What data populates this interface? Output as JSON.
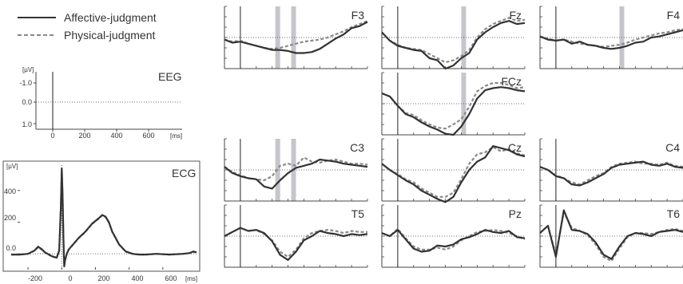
{
  "chart_data": {
    "type": "line",
    "legend": {
      "position": "top-left",
      "entries": [
        {
          "name": "Affective-judgment",
          "style": "solid",
          "color": "#333333"
        },
        {
          "name": "Physical-judgment",
          "style": "dashed",
          "color": "#888888"
        }
      ]
    },
    "eeg_scale": {
      "title": "EEG",
      "ylabel": "[µV]",
      "yticks": [
        "-1.0",
        "0.0",
        "1.0"
      ],
      "xticks": [
        "0",
        "200",
        "400",
        "600"
      ],
      "xunit": "[ms]",
      "xlim": [
        -100,
        800
      ],
      "ylim": [
        -1.5,
        1.5
      ],
      "y_inverted": true
    },
    "ecg": {
      "title": "ECG",
      "ylabel": "[µV]",
      "yticks": [
        "0.0",
        "200",
        "400"
      ],
      "xticks": [
        "-200",
        "0",
        "200",
        "400",
        "600"
      ],
      "xunit": "[ms]",
      "xlim": [
        -300,
        800
      ],
      "ylim": [
        -100,
        560
      ],
      "x": [
        -300,
        -250,
        -200,
        -160,
        -140,
        -120,
        -100,
        -60,
        -30,
        -15,
        -5,
        0,
        5,
        10,
        15,
        20,
        30,
        40,
        60,
        100,
        140,
        180,
        220,
        240,
        260,
        280,
        300,
        340,
        380,
        420,
        460,
        500,
        560,
        640,
        720,
        760,
        780,
        800
      ],
      "series": [
        {
          "name": "Affective-judgment",
          "values": [
            -5,
            -5,
            0,
            22,
            45,
            30,
            10,
            -15,
            -25,
            20,
            300,
            540,
            380,
            100,
            -80,
            -40,
            0,
            25,
            50,
            100,
            140,
            190,
            225,
            245,
            235,
            200,
            140,
            60,
            15,
            0,
            -5,
            -5,
            0,
            -5,
            0,
            5,
            15,
            10
          ]
        },
        {
          "name": "Physical-judgment",
          "values": [
            -5,
            -5,
            0,
            20,
            42,
            28,
            8,
            -15,
            -25,
            18,
            290,
            525,
            370,
            95,
            -75,
            -38,
            0,
            25,
            48,
            98,
            138,
            188,
            222,
            243,
            232,
            198,
            138,
            58,
            14,
            0,
            -5,
            -5,
            0,
            -5,
            0,
            5,
            12,
            8
          ]
        }
      ]
    },
    "erp": {
      "xlim": [
        -100,
        800
      ],
      "ylim": [
        -3,
        3
      ],
      "y_inverted": true,
      "x": [
        -100,
        -50,
        0,
        50,
        100,
        150,
        200,
        250,
        300,
        350,
        400,
        450,
        500,
        550,
        600,
        650,
        700,
        750,
        800
      ],
      "channels": [
        {
          "label": "F3",
          "shaded_ms": [
            [
              220,
              240
            ],
            [
              320,
              340
            ]
          ],
          "series": [
            {
              "name": "Affective-judgment",
              "values": [
                0.2,
                0.5,
                0.4,
                0.6,
                0.8,
                1.0,
                1.2,
                1.2,
                1.3,
                1.5,
                1.5,
                1.4,
                1.1,
                0.6,
                0.1,
                -0.3,
                -0.9,
                -1.1,
                -1.5
              ]
            },
            {
              "name": "Physical-judgment",
              "values": [
                0.2,
                0.4,
                0.3,
                0.6,
                0.8,
                1.0,
                1.1,
                1.0,
                0.8,
                0.6,
                0.4,
                0.3,
                0.2,
                0.0,
                -0.3,
                -0.6,
                -1.0,
                -1.3,
                -1.6
              ]
            }
          ]
        },
        {
          "label": "Fz",
          "shaded_ms": [
            [
              400,
              420
            ]
          ],
          "series": [
            {
              "name": "Affective-judgment",
              "values": [
                -0.5,
                0.3,
                0.8,
                1.0,
                1.2,
                1.3,
                2.0,
                2.2,
                3.0,
                2.7,
                2.0,
                1.5,
                0.2,
                -0.5,
                -1.0,
                -1.4,
                -1.6,
                -1.3,
                -1.4
              ]
            },
            {
              "name": "Physical-judgment",
              "values": [
                -0.5,
                0.3,
                0.7,
                1.0,
                1.1,
                1.2,
                1.6,
                2.0,
                2.4,
                2.2,
                1.8,
                1.2,
                0.0,
                -0.8,
                -1.3,
                -1.6,
                -1.9,
                -1.6,
                -1.7
              ]
            }
          ]
        },
        {
          "label": "F4",
          "shaded_ms": [
            [
              400,
              420
            ]
          ],
          "series": [
            {
              "name": "Affective-judgment",
              "values": [
                -0.1,
                0.2,
                0.3,
                0.2,
                0.6,
                0.4,
                0.7,
                0.8,
                1.0,
                1.1,
                1.0,
                0.8,
                0.5,
                0.4,
                0.0,
                -0.1,
                -0.3,
                -0.5,
                -0.7
              ]
            },
            {
              "name": "Physical-judgment",
              "values": [
                -0.1,
                0.1,
                0.3,
                0.2,
                0.4,
                0.6,
                0.7,
                0.8,
                0.9,
                0.8,
                0.7,
                0.5,
                0.2,
                0.0,
                -0.2,
                -0.4,
                -0.5,
                -0.7,
                -0.8
              ]
            }
          ]
        },
        {
          "label": "FCz",
          "shaded_ms": [
            [
              400,
              420
            ]
          ],
          "series": [
            {
              "name": "Affective-judgment",
              "values": [
                -1.0,
                -0.7,
                0.2,
                1.0,
                1.3,
                1.8,
                2.2,
                2.5,
                2.9,
                3.0,
                2.2,
                1.0,
                -0.5,
                -1.3,
                -1.5,
                -1.6,
                -1.5,
                -1.3,
                -1.2
              ]
            },
            {
              "name": "Physical-judgment",
              "values": [
                -1.0,
                -0.7,
                0.2,
                0.9,
                1.1,
                1.6,
                2.0,
                2.3,
                2.4,
                2.0,
                1.5,
                0.3,
                -1.2,
                -1.7,
                -2.0,
                -2.0,
                -1.8,
                -1.5,
                -1.6
              ]
            }
          ]
        },
        {
          "label": "C3",
          "shaded_ms": [
            [
              220,
              240
            ],
            [
              320,
              340
            ]
          ],
          "series": [
            {
              "name": "Affective-judgment",
              "values": [
                -0.3,
                0.3,
                0.6,
                0.8,
                0.9,
                1.6,
                1.8,
                1.0,
                0.3,
                -0.2,
                -0.4,
                -0.6,
                -1.0,
                -0.9,
                -0.8,
                -0.6,
                -0.5,
                -0.4,
                -0.3
              ]
            },
            {
              "name": "Physical-judgment",
              "values": [
                -0.3,
                0.2,
                0.5,
                0.8,
                0.9,
                1.0,
                0.6,
                -0.4,
                -0.6,
                -0.4,
                -1.2,
                -0.8,
                -0.7,
                -0.9,
                -1.0,
                -0.8,
                -0.6,
                -0.6,
                -0.5
              ]
            }
          ]
        },
        {
          "label": "Cz",
          "shaded_ms": [],
          "series": [
            {
              "name": "Affective-judgment",
              "values": [
                -0.6,
                0.0,
                0.5,
                1.0,
                1.4,
                2.0,
                2.4,
                2.8,
                3.1,
                2.6,
                1.2,
                0.0,
                -0.8,
                -1.2,
                -2.3,
                -2.1,
                -1.9,
                -1.5,
                -1.3
              ]
            },
            {
              "name": "Physical-judgment",
              "values": [
                -0.6,
                0.0,
                0.4,
                0.9,
                1.2,
                1.8,
                2.2,
                2.6,
                2.6,
                2.2,
                0.9,
                -0.6,
                -1.5,
                -1.7,
                -2.2,
                -1.8,
                -2.0,
                -1.6,
                -1.4
              ]
            }
          ]
        },
        {
          "label": "C4",
          "shaded_ms": [],
          "series": [
            {
              "name": "Affective-judgment",
              "values": [
                -0.3,
                0.0,
                0.6,
                0.8,
                1.4,
                1.5,
                1.2,
                0.8,
                0.4,
                -0.2,
                -0.5,
                -0.6,
                -0.7,
                -0.8,
                -0.5,
                -0.4,
                -0.6,
                -0.3,
                -0.2
              ]
            },
            {
              "name": "Physical-judgment",
              "values": [
                -0.3,
                0.0,
                0.5,
                0.8,
                1.2,
                1.4,
                1.0,
                0.6,
                0.3,
                -0.3,
                -0.6,
                -0.7,
                -0.8,
                -0.6,
                -0.6,
                -0.5,
                -0.7,
                -0.4,
                -0.3
              ]
            }
          ]
        },
        {
          "label": "T5",
          "shaded_ms": [],
          "series": [
            {
              "name": "Affective-judgment",
              "values": [
                0.0,
                -0.4,
                -0.8,
                -0.5,
                -0.6,
                -0.3,
                0.5,
                1.8,
                2.3,
                1.5,
                0.4,
                0.0,
                -0.5,
                -0.3,
                -0.2,
                0.0,
                -0.2,
                -0.1,
                -0.2
              ]
            },
            {
              "name": "Physical-judgment",
              "values": [
                0.0,
                -0.4,
                -0.8,
                -0.5,
                -0.6,
                -0.2,
                0.4,
                1.5,
                2.0,
                1.3,
                0.2,
                -0.3,
                -0.5,
                -0.6,
                -0.5,
                -0.3,
                -0.5,
                -0.4,
                -0.4
              ]
            }
          ]
        },
        {
          "label": "Pz",
          "shaded_ms": [],
          "series": [
            {
              "name": "Affective-judgment",
              "values": [
                -0.3,
                0.0,
                -0.6,
                0.3,
                1.2,
                1.5,
                1.4,
                0.9,
                1.0,
                0.8,
                0.3,
                0.1,
                -0.2,
                -0.6,
                -0.4,
                -0.3,
                -0.5,
                0.1,
                0.2
              ]
            },
            {
              "name": "Physical-judgment",
              "values": [
                -0.3,
                0.0,
                -0.7,
                0.2,
                1.0,
                1.3,
                1.3,
                1.1,
                1.3,
                1.0,
                0.4,
                0.0,
                -0.4,
                -0.5,
                -0.6,
                -0.5,
                -0.3,
                0.0,
                0.3
              ]
            }
          ]
        },
        {
          "label": "T6",
          "shaded_ms": [],
          "series": [
            {
              "name": "Affective-judgment",
              "values": [
                -0.3,
                -1.0,
                2.0,
                -2.5,
                -0.6,
                -0.5,
                -0.2,
                0.6,
                1.8,
                2.2,
                1.0,
                0.0,
                -0.3,
                -0.2,
                0.0,
                -0.4,
                -0.5,
                -0.6,
                -0.4
              ]
            },
            {
              "name": "Physical-judgment",
              "values": [
                -0.3,
                -1.0,
                1.8,
                -2.3,
                -0.8,
                -0.5,
                -0.1,
                0.8,
                2.0,
                2.4,
                1.2,
                0.1,
                -0.3,
                -0.3,
                -0.2,
                -0.4,
                -0.6,
                -0.7,
                -0.5
              ]
            }
          ]
        }
      ]
    }
  }
}
